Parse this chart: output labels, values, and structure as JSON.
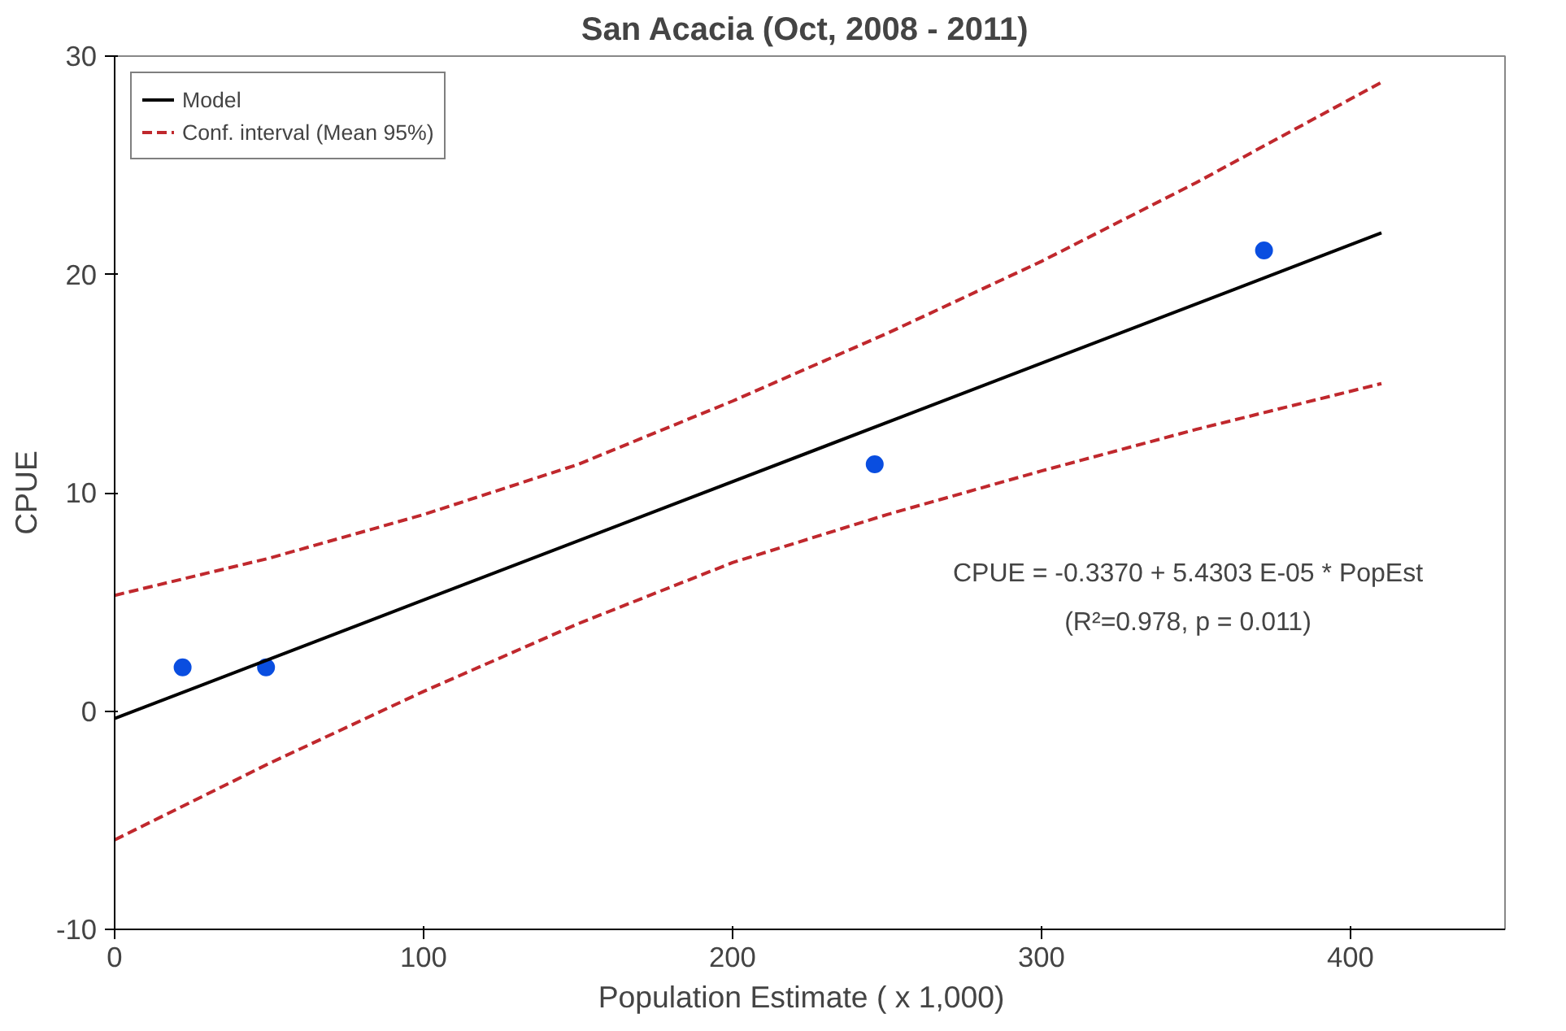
{
  "chart_data": {
    "type": "scatter",
    "title": "San Acacia  (Oct, 2008 - 2011)",
    "xlabel": "Population  Estimate  ( x 1,000)",
    "ylabel": "CPUE",
    "xlim": [
      0,
      450
    ],
    "ylim": [
      -10,
      30
    ],
    "xticks": [
      0,
      100,
      200,
      300,
      400
    ],
    "yticks": [
      -10,
      0,
      10,
      20,
      30
    ],
    "grid": false,
    "legend": "top left",
    "series": [
      {
        "color": "#0a4ee0",
        "marker": "circle",
        "x": [
          22,
          49,
          246,
          372
        ],
        "values": [
          2.0,
          2.0,
          11.3,
          21.1
        ]
      },
      {
        "type": "line",
        "name": "Model",
        "color": "#000000",
        "line_style": "solid",
        "x": [
          0,
          410
        ],
        "values": [
          -0.34,
          21.9
        ]
      },
      {
        "type": "line",
        "name": "Conf. interval (Mean 95%)",
        "color": "#c0282d",
        "line_style": "dashed",
        "x": [
          0,
          50,
          100,
          150,
          200,
          250,
          300,
          350,
          410
        ],
        "values": [
          5.3,
          7.0,
          9.0,
          11.3,
          14.2,
          17.3,
          20.6,
          24.2,
          28.8
        ]
      },
      {
        "type": "line",
        "color": "#c0282d",
        "line_style": "dashed",
        "x": [
          0,
          50,
          100,
          150,
          200,
          250,
          300,
          350,
          410
        ],
        "values": [
          -5.9,
          -2.4,
          0.9,
          4.0,
          6.8,
          9.0,
          11.0,
          12.9,
          15.0
        ]
      }
    ],
    "annotations": [
      "CPUE = -0.3370 + 5.4303 E-05 * PopEst",
      "(R²=0.978, p = 0.011)"
    ]
  }
}
